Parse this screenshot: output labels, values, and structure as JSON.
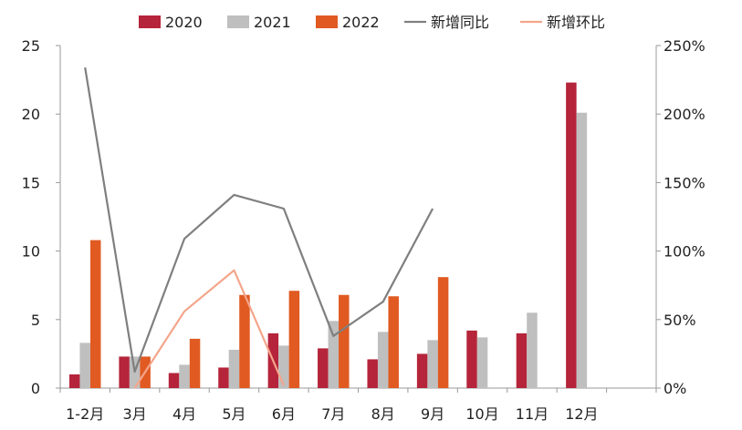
{
  "chart_data": {
    "type": "bar",
    "categories": [
      "1-2月",
      "3月",
      "4月",
      "5月",
      "6月",
      "7月",
      "8月",
      "9月",
      "10月",
      "11月",
      "12月",
      ""
    ],
    "series": [
      {
        "name": "2020",
        "kind": "bar",
        "axis": "left",
        "color": "#b5243a",
        "values": [
          1.0,
          2.3,
          1.1,
          1.5,
          4.0,
          2.9,
          2.1,
          2.5,
          4.2,
          4.0,
          22.3,
          null
        ]
      },
      {
        "name": "2021",
        "kind": "bar",
        "axis": "left",
        "color": "#bfbfbf",
        "values": [
          3.3,
          2.3,
          1.7,
          2.8,
          3.1,
          4.9,
          4.1,
          3.5,
          3.7,
          5.5,
          20.1,
          null
        ]
      },
      {
        "name": "2022",
        "kind": "bar",
        "axis": "left",
        "color": "#e05a22",
        "values": [
          10.8,
          2.3,
          3.6,
          6.8,
          7.1,
          6.8,
          6.7,
          8.1,
          null,
          null,
          null,
          null
        ]
      },
      {
        "name": "新增同比",
        "kind": "line",
        "axis": "right",
        "color": "#7f7f7f",
        "values": [
          2.34,
          0.12,
          1.09,
          1.41,
          1.31,
          0.38,
          0.63,
          1.31,
          null,
          null,
          null,
          null
        ]
      },
      {
        "name": "新增环比",
        "kind": "line",
        "axis": "right",
        "color": "#f4a58a",
        "values": [
          null,
          0.0,
          0.56,
          0.86,
          0.02,
          null,
          null,
          null,
          null,
          null,
          null,
          null
        ]
      }
    ],
    "y_left": {
      "min": 0,
      "max": 25,
      "ticks": [
        0,
        5,
        10,
        15,
        20,
        25
      ],
      "tick_labels": [
        "0",
        "5",
        "10",
        "15",
        "20",
        "25"
      ]
    },
    "y_right": {
      "min": 0,
      "max": 2.5,
      "ticks": [
        0,
        0.5,
        1,
        1.5,
        2,
        2.5
      ],
      "tick_labels": [
        "0%",
        "50%",
        "100%",
        "150%",
        "200%",
        "250%"
      ]
    },
    "legend_position": "top",
    "grid": false
  }
}
